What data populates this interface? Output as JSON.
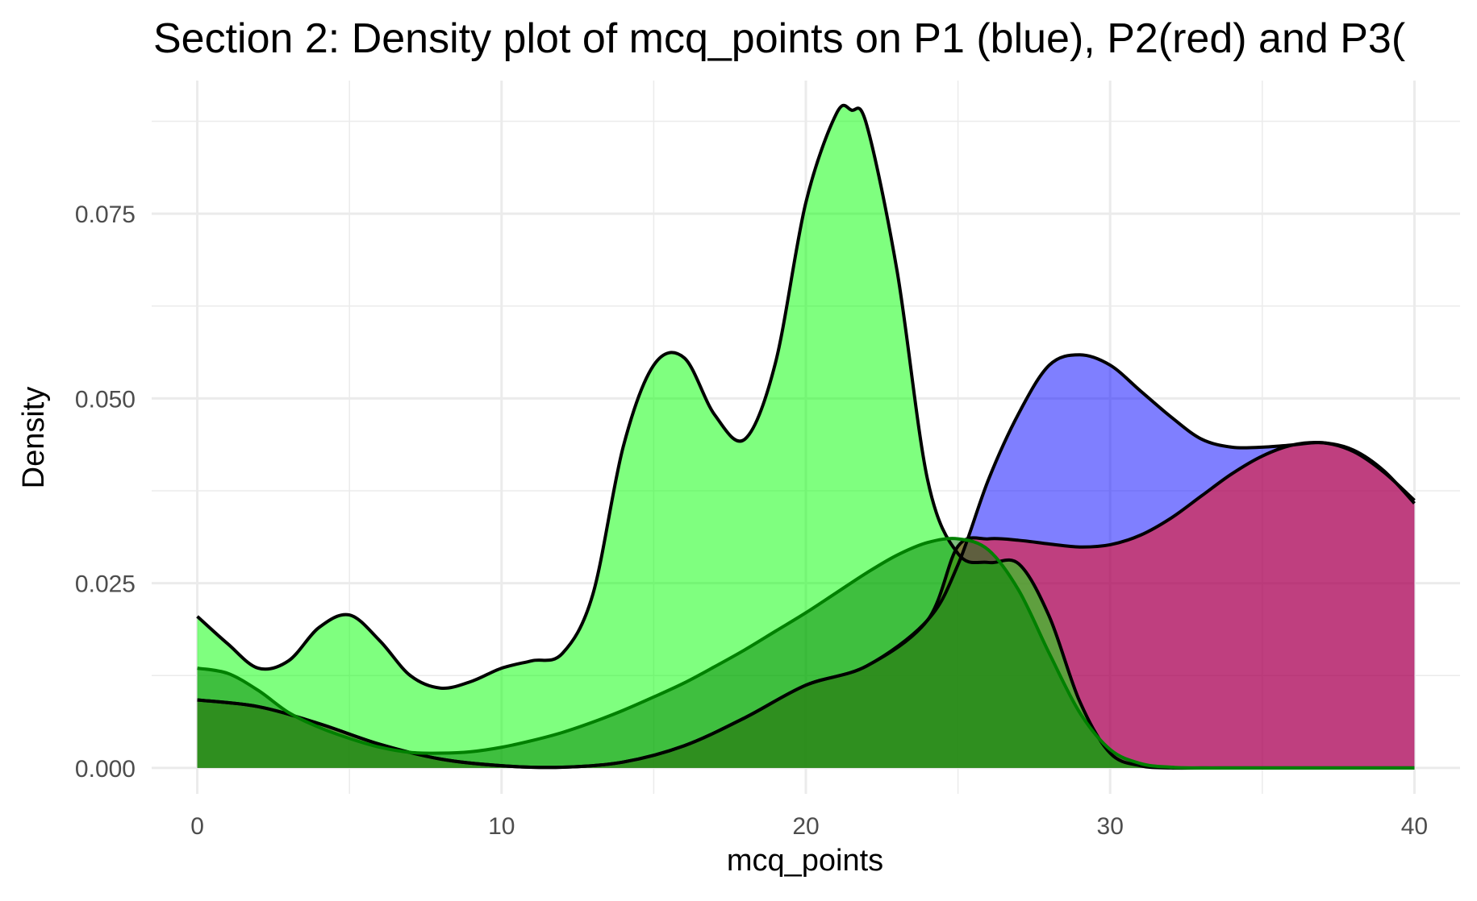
{
  "chart_data": {
    "type": "area",
    "title": "Section 2: Density plot of mcq_points on P1 (blue), P2(red) and P3(",
    "xlabel": "mcq_points",
    "ylabel": "Density",
    "xlim": [
      -1.5,
      41.5
    ],
    "ylim": [
      -0.0035,
      0.093
    ],
    "x_ticks": [
      0,
      10,
      20,
      30,
      40
    ],
    "x_tick_labels": [
      "0",
      "10",
      "20",
      "30",
      "40"
    ],
    "y_ticks": [
      0.0,
      0.025,
      0.05,
      0.075
    ],
    "y_tick_labels": [
      "0.000",
      "0.025",
      "0.050",
      "0.075"
    ],
    "grid": true,
    "legend": "none",
    "series": [
      {
        "color": "#0000FF",
        "fill_opacity": 0.5,
        "stroke": "#000000",
        "x": [
          0,
          2,
          4,
          6,
          8,
          10,
          12,
          14,
          16,
          18,
          20,
          22,
          24,
          25,
          26,
          27,
          28,
          29,
          30,
          31,
          32,
          33,
          34,
          35,
          36,
          37,
          38,
          39,
          40
        ],
        "y": [
          0.0092,
          0.0083,
          0.006,
          0.0032,
          0.0012,
          0.0003,
          0.0001,
          0.0008,
          0.003,
          0.0068,
          0.0112,
          0.0138,
          0.02,
          0.0275,
          0.039,
          0.048,
          0.0545,
          0.0559,
          0.0545,
          0.051,
          0.0475,
          0.0445,
          0.0434,
          0.0434,
          0.0437,
          0.044,
          0.0428,
          0.04,
          0.0362
        ]
      },
      {
        "color": "#FF0000",
        "fill_opacity": 0.5,
        "stroke": "#000000",
        "x": [
          0,
          2,
          4,
          6,
          8,
          10,
          12,
          14,
          16,
          18,
          20,
          22,
          24,
          25,
          26,
          27,
          28,
          29,
          30,
          31,
          32,
          33,
          34,
          35,
          36,
          37,
          38,
          39,
          40
        ],
        "y": [
          0.0092,
          0.0083,
          0.006,
          0.0032,
          0.0012,
          0.0003,
          0.0001,
          0.0008,
          0.003,
          0.0068,
          0.0112,
          0.0138,
          0.02,
          0.03,
          0.031,
          0.0308,
          0.0303,
          0.0299,
          0.0302,
          0.0315,
          0.0338,
          0.0368,
          0.0398,
          0.0422,
          0.0437,
          0.044,
          0.043,
          0.0402,
          0.0358
        ]
      },
      {
        "color": "#00FF00",
        "fill_opacity": 0.5,
        "stroke": "#000000",
        "x": [
          0,
          1,
          2,
          3,
          4,
          5,
          6,
          7,
          8,
          9,
          10,
          11,
          12,
          13,
          14,
          15,
          16,
          17,
          18,
          19,
          20,
          21,
          21.5,
          22,
          23,
          24,
          25,
          26,
          27,
          28,
          29,
          30,
          31,
          32,
          33,
          34,
          35,
          36,
          37,
          38,
          39,
          40
        ],
        "y": [
          0.0205,
          0.0168,
          0.0135,
          0.0145,
          0.019,
          0.0207,
          0.0172,
          0.0125,
          0.0108,
          0.0117,
          0.0135,
          0.0145,
          0.0155,
          0.0235,
          0.0435,
          0.0545,
          0.0555,
          0.0478,
          0.0445,
          0.0548,
          0.0765,
          0.0885,
          0.089,
          0.087,
          0.0672,
          0.039,
          0.029,
          0.0278,
          0.0276,
          0.0205,
          0.009,
          0.002,
          0.0003,
          0,
          0,
          0,
          0,
          0,
          0,
          0,
          0,
          0
        ]
      },
      {
        "color": "#008000",
        "fill_opacity": 0.5,
        "stroke": "#008000",
        "x": [
          0,
          1,
          2,
          3,
          4,
          5,
          6,
          7,
          8,
          9,
          10,
          11,
          12,
          13,
          14,
          15,
          16,
          17,
          18,
          19,
          20,
          21,
          22,
          23,
          24,
          25,
          26,
          27,
          28,
          29,
          30,
          31,
          32,
          33,
          34,
          35,
          36,
          37,
          38,
          39,
          40
        ],
        "y": [
          0.0135,
          0.0128,
          0.0105,
          0.0075,
          0.0055,
          0.004,
          0.0028,
          0.0021,
          0.002,
          0.0022,
          0.0028,
          0.0037,
          0.0048,
          0.0062,
          0.0078,
          0.0096,
          0.0115,
          0.0137,
          0.016,
          0.0185,
          0.021,
          0.0237,
          0.0264,
          0.0288,
          0.0305,
          0.031,
          0.0295,
          0.024,
          0.0155,
          0.0075,
          0.0025,
          0.0006,
          0.0001,
          0,
          0,
          0,
          0,
          0,
          0,
          0,
          0
        ]
      }
    ]
  }
}
